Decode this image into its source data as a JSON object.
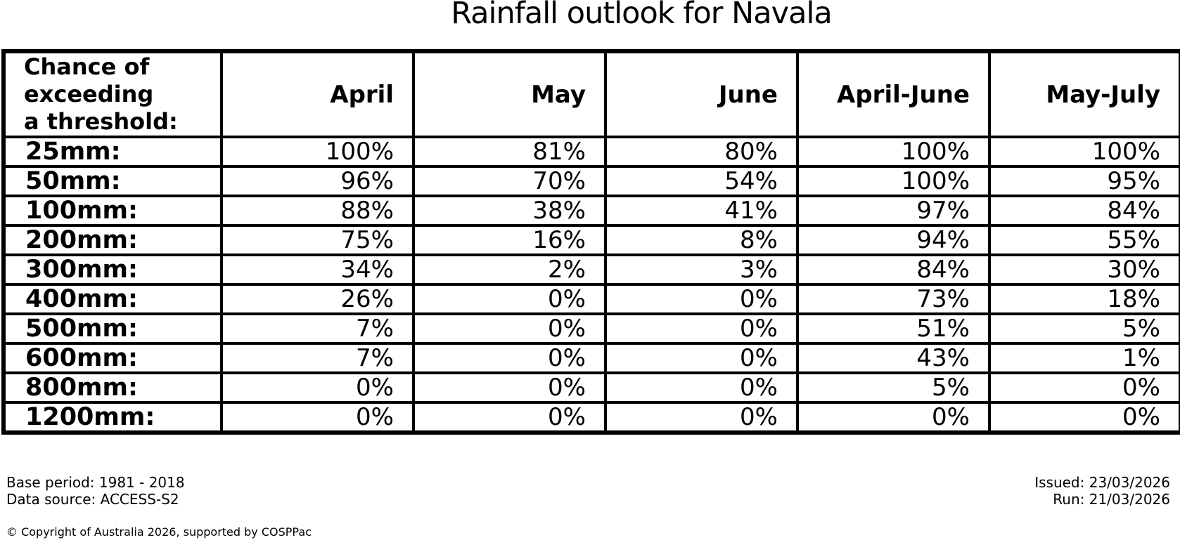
{
  "title": "Rainfall outlook for Navala",
  "table": {
    "corner_header": "Chance of\nexceeding\na threshold:",
    "columns": [
      "April",
      "May",
      "June",
      "April-June",
      "May-July"
    ],
    "rows": [
      {
        "threshold": "25mm:",
        "values": [
          "100%",
          "81%",
          "80%",
          "100%",
          "100%"
        ]
      },
      {
        "threshold": "50mm:",
        "values": [
          "96%",
          "70%",
          "54%",
          "100%",
          "95%"
        ]
      },
      {
        "threshold": "100mm:",
        "values": [
          "88%",
          "38%",
          "41%",
          "97%",
          "84%"
        ]
      },
      {
        "threshold": "200mm:",
        "values": [
          "75%",
          "16%",
          "8%",
          "94%",
          "55%"
        ]
      },
      {
        "threshold": "300mm:",
        "values": [
          "34%",
          "2%",
          "3%",
          "84%",
          "30%"
        ]
      },
      {
        "threshold": "400mm:",
        "values": [
          "26%",
          "0%",
          "0%",
          "73%",
          "18%"
        ]
      },
      {
        "threshold": "500mm:",
        "values": [
          "7%",
          "0%",
          "0%",
          "51%",
          "5%"
        ]
      },
      {
        "threshold": "600mm:",
        "values": [
          "7%",
          "0%",
          "0%",
          "43%",
          "1%"
        ]
      },
      {
        "threshold": "800mm:",
        "values": [
          "0%",
          "0%",
          "0%",
          "5%",
          "0%"
        ]
      },
      {
        "threshold": "1200mm:",
        "values": [
          "0%",
          "0%",
          "0%",
          "0%",
          "0%"
        ]
      }
    ]
  },
  "footer": {
    "base_period": "Base period: 1981 - 2018",
    "data_source": "Data source: ACCESS-S2",
    "issued": "Issued: 23/03/2026",
    "run": "Run: 21/03/2026",
    "copyright": "© Copyright of Australia 2026, supported by COSPPac"
  },
  "colors": {
    "text": "#000000",
    "background": "#ffffff",
    "table_border": "#000000"
  },
  "chart_data": {
    "type": "table",
    "title": "Rainfall outlook for Navala",
    "row_header": "Chance of exceeding a threshold:",
    "categories": [
      "25mm",
      "50mm",
      "100mm",
      "200mm",
      "300mm",
      "400mm",
      "500mm",
      "600mm",
      "800mm",
      "1200mm"
    ],
    "series": [
      {
        "name": "April",
        "values": [
          100,
          96,
          88,
          75,
          34,
          26,
          7,
          7,
          0,
          0
        ]
      },
      {
        "name": "May",
        "values": [
          81,
          70,
          38,
          16,
          2,
          0,
          0,
          0,
          0,
          0
        ]
      },
      {
        "name": "June",
        "values": [
          80,
          54,
          41,
          8,
          3,
          0,
          0,
          0,
          0,
          0
        ]
      },
      {
        "name": "April-June",
        "values": [
          100,
          100,
          97,
          94,
          84,
          73,
          51,
          43,
          5,
          0
        ]
      },
      {
        "name": "May-July",
        "values": [
          100,
          95,
          84,
          55,
          30,
          18,
          5,
          1,
          0,
          0
        ]
      }
    ],
    "unit": "%",
    "base_period": "1981 - 2018",
    "data_source": "ACCESS-S2",
    "issued_date": "23/03/2026",
    "run_date": "21/03/2026"
  }
}
